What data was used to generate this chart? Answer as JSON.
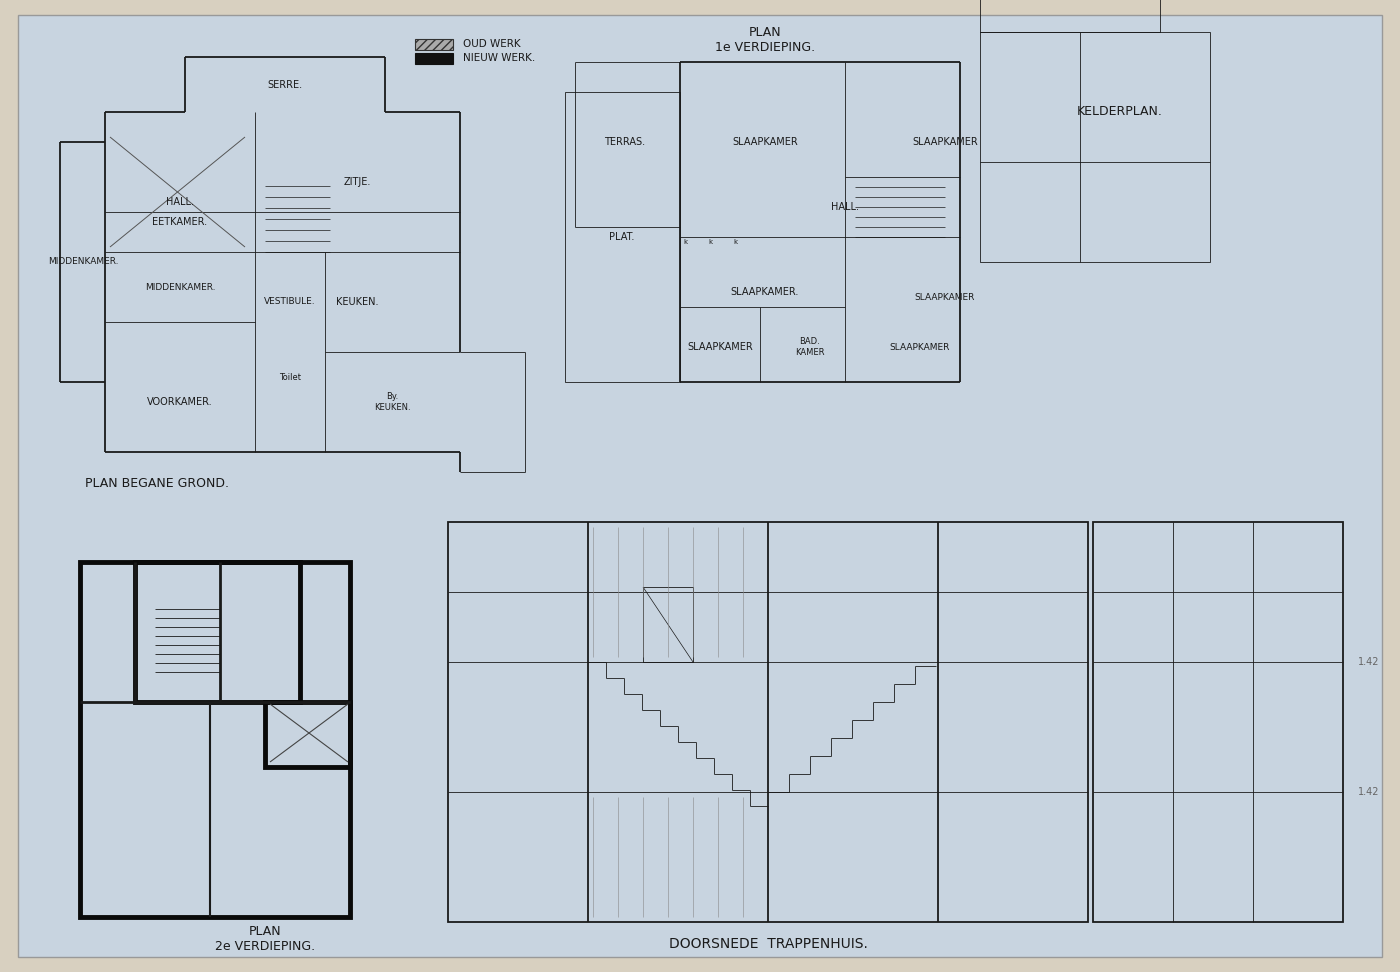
{
  "bg_color": "#c8d4e0",
  "line_color": "#1a1a1a",
  "thin_line": 0.6,
  "medium_line": 1.3,
  "thick_line": 3.0,
  "labels": {
    "serre": "SERRE.",
    "eetkamer": "EETKAMER.",
    "zitje": "ZITJE.",
    "middenkamer": "MIDDENKAMER.",
    "keuken": "KEUKEN.",
    "hall": "HALL.",
    "voorkamer": "VOORKAMER.",
    "vestibule": "VESTIBULE.",
    "toilet": "Toilet",
    "by_keuken": "By.\nKEUKEN.",
    "plan_begane_grond": "PLAN BEGANE GROND.",
    "plan_1e_verdieping": "PLAN\n1e VERDIEPING.",
    "plan_2e_verdieping": "PLAN\n2e VERDIEPING.",
    "plat": "PLAT.",
    "terras": "TERRAS.",
    "slaapkamer": "SLAAPKAMER",
    "hall2": "HALL.",
    "bad_kamer": "BAD.\nKAMER",
    "kelderplan": "KELDERPLAN.",
    "doorsnede": "DOORSNEDE  TRAPPENHUIS.",
    "oud_werk": "OUD WERK",
    "nieuw_werk": "NIEUW WERK."
  },
  "font_size_label": 7,
  "font_size_title": 9
}
